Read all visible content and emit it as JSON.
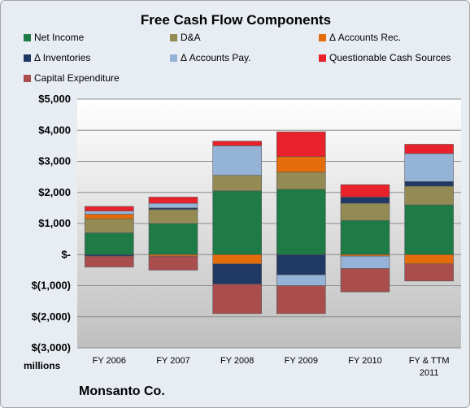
{
  "chart_data": {
    "type": "bar",
    "stacked": true,
    "title": "Free Cash Flow Components",
    "categories": [
      "FY 2006",
      "FY 2007",
      "FY 2008",
      "FY 2009",
      "FY 2010",
      "FY & TTM 2011"
    ],
    "ylim": [
      -3000,
      5000
    ],
    "yticks": [
      5000,
      4000,
      3000,
      2000,
      1000,
      0,
      -1000,
      -2000,
      -3000
    ],
    "ytick_labels": [
      "$5,000",
      "$4,000",
      "$3,000",
      "$2,000",
      "$1,000",
      "$-",
      "$(1,000)",
      "$(2,000)",
      "$(3,000)"
    ],
    "units_label": "millions",
    "company": "Monsanto Co.",
    "grid": true,
    "legend_position": "top",
    "series": [
      {
        "name": "Net Income",
        "color": "#1e7b45",
        "values": [
          700,
          1000,
          2050,
          2100,
          1100,
          1600
        ]
      },
      {
        "name": "D&A",
        "color": "#948a54",
        "values": [
          450,
          450,
          500,
          550,
          550,
          600
        ]
      },
      {
        "name": "Δ Accounts Rec.",
        "color": "#e46c0a",
        "values": [
          150,
          -50,
          -300,
          500,
          -50,
          -300
        ]
      },
      {
        "name": "Δ Inventories",
        "color": "#1f3864",
        "values": [
          -50,
          50,
          -650,
          -650,
          200,
          150
        ]
      },
      {
        "name": "Δ Accounts Pay.",
        "color": "#95b3d7",
        "values": [
          100,
          150,
          950,
          -350,
          -400,
          900
        ]
      },
      {
        "name": "Questionable Cash Sources",
        "color": "#e8212b",
        "values": [
          150,
          200,
          150,
          800,
          400,
          300
        ]
      },
      {
        "name": "Capital Expenditure",
        "color": "#a94d4d",
        "values": [
          -350,
          -450,
          -950,
          -900,
          -750,
          -550
        ]
      }
    ]
  }
}
